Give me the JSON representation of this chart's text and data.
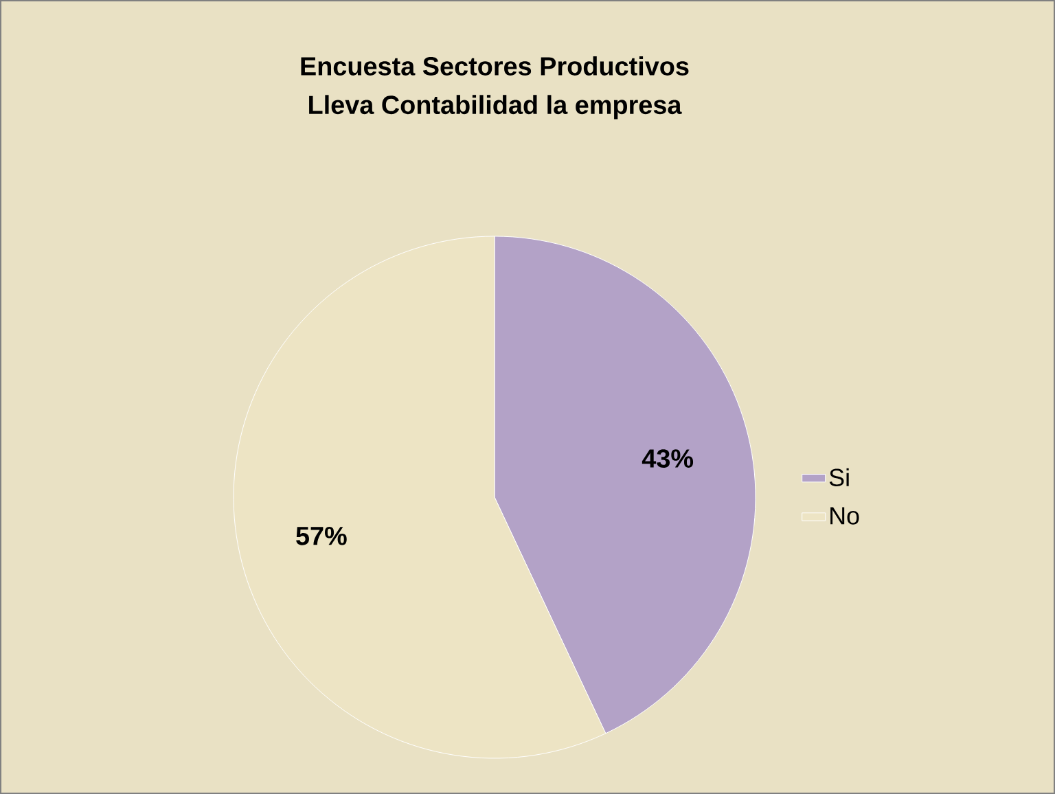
{
  "chart_data": {
    "type": "pie",
    "title": "Encuesta Sectores Productivos",
    "subtitle": "Lleva Contabilidad la empresa",
    "categories": [
      "Si",
      "No"
    ],
    "values": [
      43,
      57
    ],
    "colors": [
      "#b3a2c7",
      "#ede4c4"
    ],
    "value_labels": [
      "43%",
      "57%"
    ],
    "legend": "right"
  }
}
